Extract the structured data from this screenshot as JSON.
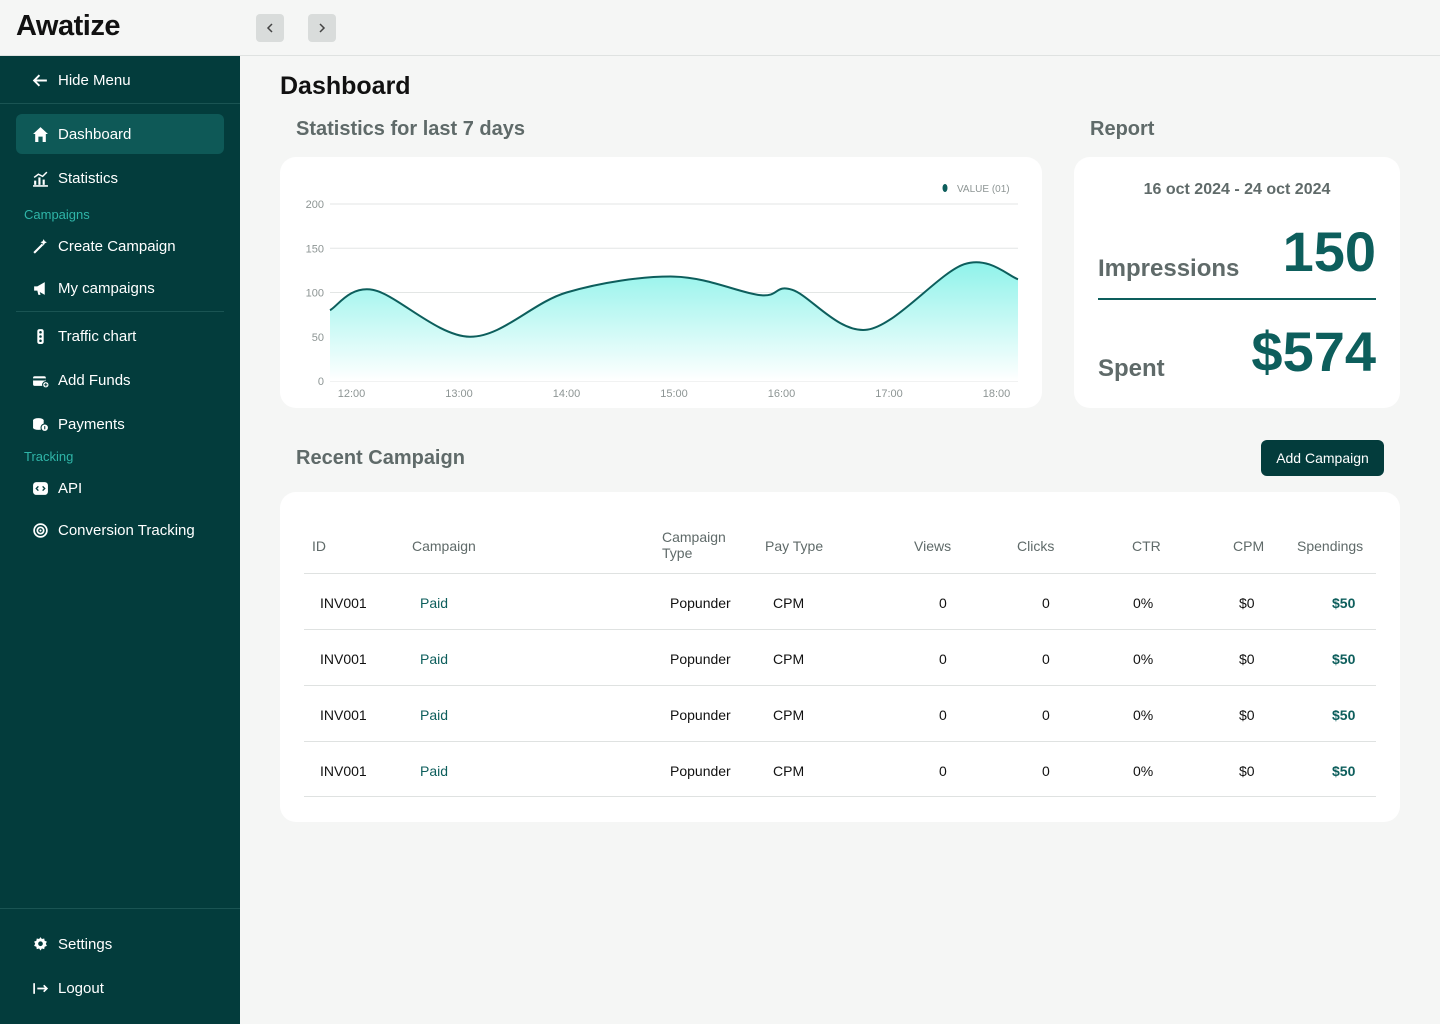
{
  "app": {
    "logo": "Awatize"
  },
  "sidebar": {
    "hide_menu": "Hide Menu",
    "items": [
      {
        "label": "Dashboard",
        "icon": "home-icon"
      },
      {
        "label": "Statistics",
        "icon": "statistics-icon"
      },
      {
        "label": "Create Campaign",
        "icon": "magic-wand-icon"
      },
      {
        "label": "My campaigns",
        "icon": "megaphone-icon"
      },
      {
        "label": "Traffic chart",
        "icon": "traffic-light-icon"
      },
      {
        "label": "Add Funds",
        "icon": "wallet-add-icon"
      },
      {
        "label": "Payments",
        "icon": "coins-icon"
      },
      {
        "label": "API",
        "icon": "code-icon"
      },
      {
        "label": "Conversion Tracking",
        "icon": "target-icon"
      },
      {
        "label": "Settings",
        "icon": "gear-icon"
      },
      {
        "label": "Logout",
        "icon": "logout-icon"
      }
    ],
    "sections": {
      "campaigns": "Campaigns",
      "tracking": "Tracking"
    }
  },
  "main": {
    "title": "Dashboard",
    "stats_title": "Statistics for last 7 days",
    "report_title": "Report",
    "recent_title": "Recent Campaign",
    "add_campaign": "Add Campaign"
  },
  "report": {
    "date_range": "16 oct 2024 - 24 oct 2024",
    "impressions_label": "Impressions",
    "impressions_value": "150",
    "spent_label": "Spent",
    "spent_value": "$574"
  },
  "chart_data": {
    "type": "area",
    "legend": "VALUE (01)",
    "x": [
      "12:00",
      "13:00",
      "14:00",
      "15:00",
      "16:00",
      "17:00",
      "18:00"
    ],
    "points": [
      [
        11.8,
        80
      ],
      [
        12.2,
        103
      ],
      [
        13.1,
        50
      ],
      [
        14.0,
        100
      ],
      [
        15.0,
        118
      ],
      [
        15.8,
        97
      ],
      [
        16.1,
        103
      ],
      [
        16.8,
        58
      ],
      [
        17.7,
        132
      ],
      [
        18.2,
        115
      ]
    ],
    "yticks": [
      0,
      50,
      100,
      150,
      200
    ],
    "ylim": [
      0,
      200
    ],
    "xlim": [
      11.8,
      18.2
    ],
    "grid": true,
    "legend_position": "top-right",
    "colors": {
      "line": "#0d5e5c",
      "fill_top": "#8ff3ea",
      "fill_bottom": "#ffffff"
    }
  },
  "table": {
    "headers": [
      "ID",
      "Campaign",
      "Campaign Type",
      "Pay Type",
      "Views",
      "Clicks",
      "CTR",
      "CPM",
      "Spendings"
    ],
    "rows": [
      [
        "INV001",
        "Paid",
        "Popunder",
        "CPM",
        "0",
        "0",
        "0%",
        "$0",
        "$50"
      ],
      [
        "INV001",
        "Paid",
        "Popunder",
        "CPM",
        "0",
        "0",
        "0%",
        "$0",
        "$50"
      ],
      [
        "INV001",
        "Paid",
        "Popunder",
        "CPM",
        "0",
        "0",
        "0%",
        "$0",
        "$50"
      ],
      [
        "INV001",
        "Paid",
        "Popunder",
        "CPM",
        "0",
        "0",
        "0%",
        "$0",
        "$50"
      ]
    ]
  },
  "colors": {
    "sidebar": "#033c3c",
    "accent": "#0d5e5c",
    "section": "#2fb5a8"
  }
}
